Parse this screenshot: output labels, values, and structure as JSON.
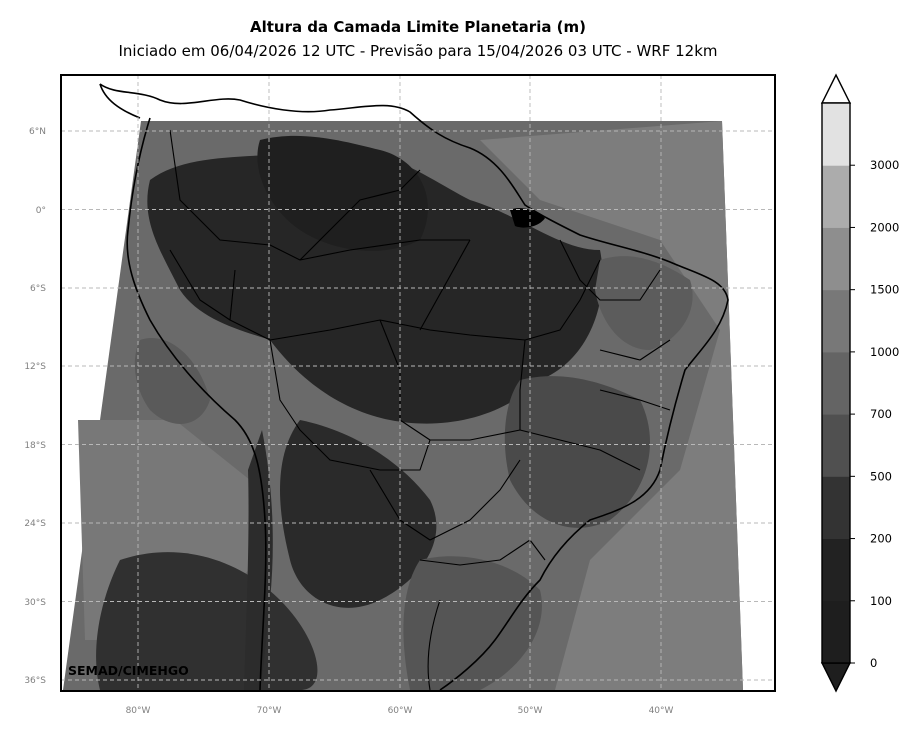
{
  "title": "Altura da Camada Limite Planetaria (m)",
  "subtitle": "Iniciado em 06/04/2026 12 UTC - Previsão para 15/04/2026 03 UTC - WRF 12km",
  "credit": "SEMAD/CIMEHGO",
  "lat_labels": [
    "6°N",
    "0°",
    "6°S",
    "12°S",
    "18°S",
    "24°S",
    "30°S",
    "36°S"
  ],
  "lon_labels": [
    "80°W",
    "70°W",
    "60°W",
    "50°W",
    "40°W"
  ],
  "colorbar": {
    "levels": [
      "0",
      "100",
      "200",
      "500",
      "700",
      "1000",
      "1500",
      "2000",
      "3000"
    ],
    "colors": [
      "#1e1e1e",
      "#222222",
      "#333333",
      "#505050",
      "#646464",
      "#787878",
      "#8e8e8e",
      "#acacac",
      "#e2e2e2"
    ],
    "extend": "both"
  },
  "map": {
    "projection": "lat-lon",
    "extent_lon": [
      -86,
      -31
    ],
    "extent_lat": [
      -36.5,
      10.5
    ],
    "gridlines": "dashed"
  }
}
